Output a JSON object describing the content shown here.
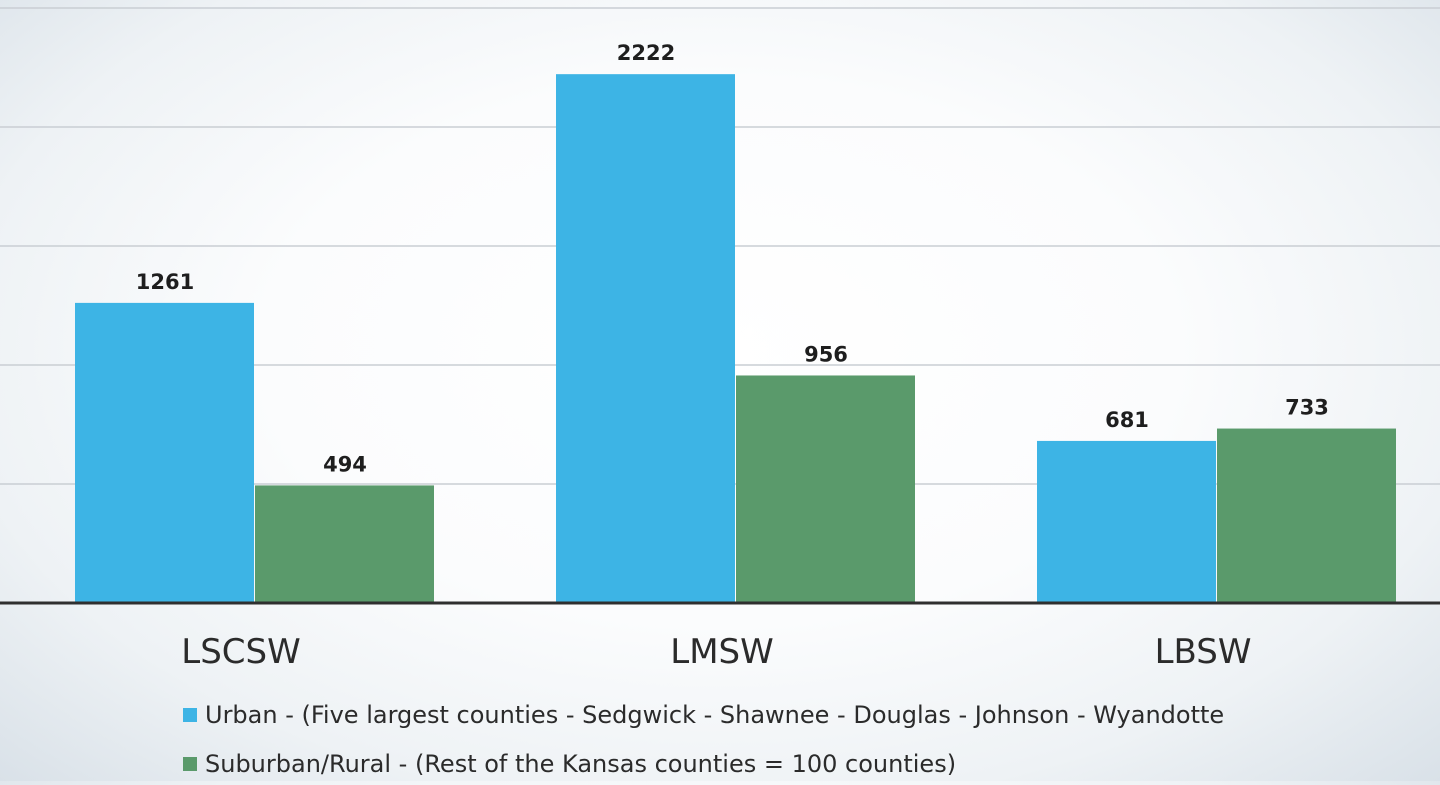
{
  "chart_data": {
    "type": "bar",
    "categories": [
      "LSCSW",
      "LMSW",
      "LBSW"
    ],
    "series": [
      {
        "name": "Urban - (Five largest counties - Sedgwick - Shawnee - Douglas - Johnson - Wyandotte",
        "values": [
          1261,
          2222,
          681
        ],
        "color": "#3db4e5"
      },
      {
        "name": "Suburban/Rural - (Rest of the Kansas counties = 100 counties)",
        "values": [
          494,
          956,
          733
        ],
        "color": "#5a9a6b"
      }
    ],
    "data_labels": true,
    "grid": true,
    "legend_position": "bottom",
    "ylim": [
      0,
      2500
    ]
  }
}
